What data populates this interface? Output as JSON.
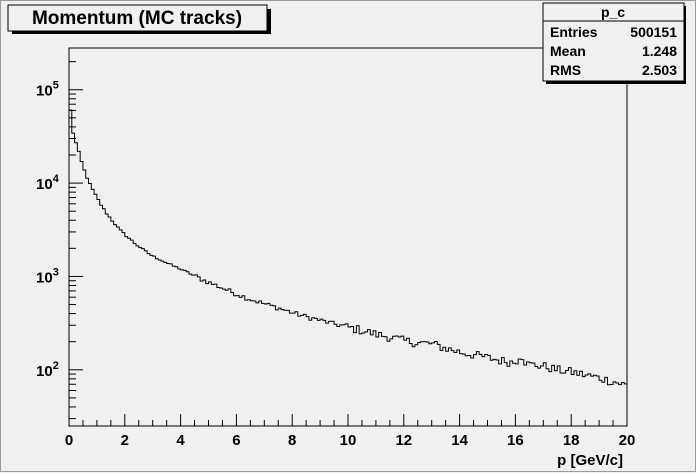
{
  "chart_data": {
    "type": "histogram",
    "title": "Momentum (MC tracks)",
    "xlabel": "p [GeV/c]",
    "ylabel": "",
    "xlim": [
      0,
      20
    ],
    "ylim": [
      25,
      280000
    ],
    "y_scale": "log",
    "grid": false,
    "bin_width": 0.1,
    "x_ticks": [
      "0",
      "2",
      "4",
      "6",
      "8",
      "10",
      "12",
      "14",
      "16",
      "18",
      "20"
    ],
    "y_ticks": [
      {
        "value": 100,
        "base": "10",
        "exp": "2"
      },
      {
        "value": 1000,
        "base": "10",
        "exp": "3"
      },
      {
        "value": 10000,
        "base": "10",
        "exp": "4"
      },
      {
        "value": 100000,
        "base": "10",
        "exp": "5"
      }
    ],
    "bins_x_start": [
      0,
      0.05,
      0.1,
      0.2,
      0.3,
      0.4,
      0.5,
      0.6,
      0.7,
      0.8,
      0.9,
      1.0,
      1.2,
      1.4,
      1.6,
      1.8,
      2.0,
      2.2,
      2.4,
      2.6,
      2.8,
      3.0,
      3.3,
      3.6,
      4.0,
      4.4,
      4.8,
      5.2,
      5.6,
      6.0,
      6.5,
      7.0,
      7.5,
      8.0,
      8.5,
      9.0,
      9.5,
      10.0,
      10.5,
      11.0,
      11.5,
      12.0,
      12.5,
      13.0,
      13.5,
      14.0,
      14.5,
      15.0,
      15.5,
      16.0,
      16.2,
      16.4,
      17.0,
      17.5,
      18.0,
      18.5,
      19.0,
      19.5,
      20.0
    ],
    "bins_y": [
      150000,
      60000,
      40000,
      30000,
      24000,
      19000,
      15000,
      12500,
      10500,
      9000,
      8000,
      7000,
      5500,
      4500,
      3800,
      3200,
      2800,
      2500,
      2200,
      2000,
      1800,
      1650,
      1500,
      1350,
      1200,
      1050,
      920,
      820,
      730,
      650,
      570,
      510,
      460,
      410,
      370,
      340,
      310,
      285,
      265,
      240,
      225,
      205,
      195,
      190,
      170,
      155,
      145,
      135,
      125,
      120,
      150,
      115,
      110,
      100,
      95,
      88,
      82,
      75,
      68
    ],
    "stats": {
      "name": "p_c",
      "rows": [
        {
          "label": "Entries",
          "value": "500151"
        },
        {
          "label": "Mean",
          "value": "1.248"
        },
        {
          "label": "RMS",
          "value": "2.503"
        }
      ]
    }
  }
}
